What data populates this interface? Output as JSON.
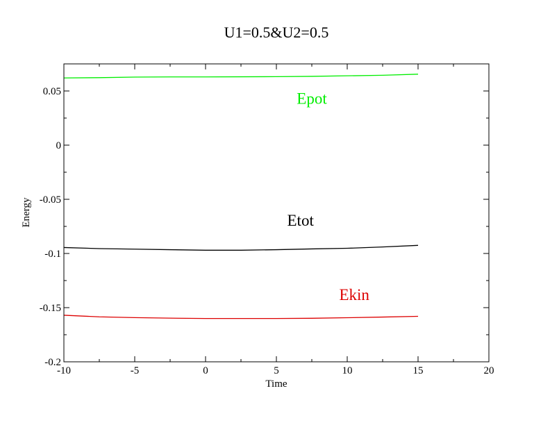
{
  "chart_data": {
    "type": "line",
    "title": "U1=0.5&U2=0.5",
    "xlabel": "Time",
    "ylabel": "Energy",
    "xlim": [
      -10,
      20
    ],
    "ylim": [
      -0.2,
      0.075
    ],
    "x_major_ticks": [
      -10,
      -5,
      0,
      5,
      10,
      15,
      20
    ],
    "x_tick_labels": [
      "-10",
      "-5",
      "0",
      "5",
      "10",
      "15",
      "20"
    ],
    "x_minor_step": 2.5,
    "y_major_ticks": [
      -0.2,
      -0.15,
      -0.1,
      -0.05,
      0,
      0.05
    ],
    "y_tick_labels": [
      "-0.2",
      "-0.15",
      "-0.1",
      "-0.05",
      "0",
      "0.05"
    ],
    "y_minor_step": 0.025,
    "grid": false,
    "legend": "none",
    "series": [
      {
        "name": "Epot",
        "color": "#00ee00",
        "x": [
          -10,
          -7.5,
          -5,
          -2.5,
          0,
          2.5,
          5,
          7.5,
          10,
          12.5,
          15
        ],
        "y": [
          0.062,
          0.0623,
          0.0628,
          0.063,
          0.063,
          0.0631,
          0.0632,
          0.0635,
          0.064,
          0.0645,
          0.0655
        ]
      },
      {
        "name": "Etot",
        "color": "#000000",
        "x": [
          -10,
          -7.5,
          -5,
          -2.5,
          0,
          2.5,
          5,
          7.5,
          10,
          12.5,
          15
        ],
        "y": [
          -0.0945,
          -0.0955,
          -0.096,
          -0.0965,
          -0.097,
          -0.097,
          -0.0965,
          -0.0958,
          -0.0952,
          -0.094,
          -0.0925
        ]
      },
      {
        "name": "Ekin",
        "color": "#dd0000",
        "x": [
          -10,
          -7.5,
          -5,
          -2.5,
          0,
          2.5,
          5,
          7.5,
          10,
          12.5,
          15
        ],
        "y": [
          -0.157,
          -0.1585,
          -0.1592,
          -0.1597,
          -0.16,
          -0.16,
          -0.16,
          -0.1598,
          -0.1593,
          -0.1587,
          -0.158
        ]
      }
    ],
    "annotations": [
      {
        "text": "Epot",
        "color": "#00ee00",
        "x": 7.5,
        "y": 0.038
      },
      {
        "text": "Etot",
        "color": "#000000",
        "x": 6.7,
        "y": -0.0745
      },
      {
        "text": "Ekin",
        "color": "#dd0000",
        "x": 10.5,
        "y": -0.143
      }
    ]
  }
}
